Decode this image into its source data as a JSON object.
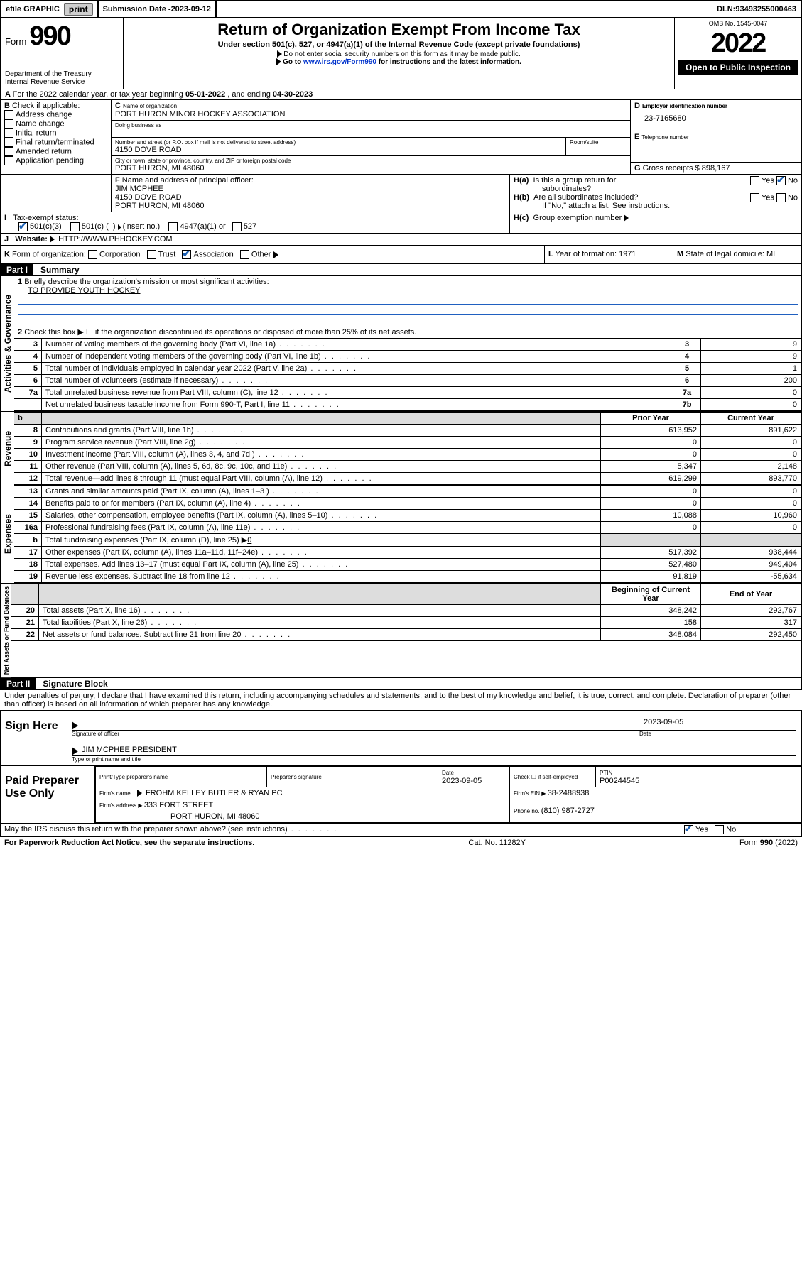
{
  "topbar": {
    "efile": "efile GRAPHIC",
    "print": "print",
    "submission_label": "Submission Date - ",
    "submission_date": "2023-09-12",
    "dln_label": "DLN: ",
    "dln": "93493255000463"
  },
  "header": {
    "form_word": "Form",
    "form_num": "990",
    "dept": "Department of the Treasury",
    "irs": "Internal Revenue Service",
    "title": "Return of Organization Exempt From Income Tax",
    "sub": "Under section 501(c), 527, or 4947(a)(1) of the Internal Revenue Code (except private foundations)",
    "warn1": "Do not enter social security numbers on this form as it may be made public.",
    "warn2_pre": "Go to ",
    "warn2_link": "www.irs.gov/Form990",
    "warn2_post": " for instructions and the latest information.",
    "omb": "OMB No. 1545-0047",
    "year": "2022",
    "open": "Open to Public Inspection"
  },
  "a": {
    "text_pre": "For the 2022 calendar year, or tax year beginning ",
    "beg": "05-01-2022",
    "mid": " , and ending ",
    "end": "04-30-2023"
  },
  "b": {
    "header": "Check if applicable:",
    "opts": [
      "Address change",
      "Name change",
      "Initial return",
      "Final return/terminated",
      "Amended return",
      "Application pending"
    ]
  },
  "c": {
    "label": "Name of organization",
    "name": "PORT HURON MINOR HOCKEY ASSOCIATION",
    "dba_label": "Doing business as",
    "addr_label": "Number and street (or P.O. box if mail is not delivered to street address)",
    "room": "Room/suite",
    "addr": "4150 DOVE ROAD",
    "city_label": "City or town, state or province, country, and ZIP or foreign postal code",
    "city": "PORT HURON, MI  48060"
  },
  "d": {
    "label": "Employer identification number",
    "val": "23-7165680"
  },
  "e": {
    "label": "Telephone number"
  },
  "g": {
    "label": "Gross receipts $ ",
    "val": "898,167"
  },
  "f": {
    "label": "Name and address of principal officer:",
    "name": "JIM MCPHEE",
    "addr": "4150 DOVE ROAD",
    "city": "PORT HURON, MI  48060"
  },
  "h": {
    "a1": "Is this a group return for",
    "a2": "subordinates?",
    "b1": "Are all subordinates included?",
    "b_note": "If \"No,\" attach a list. See instructions.",
    "c": "Group exemption number ",
    "yes": "Yes",
    "no": "No"
  },
  "i": {
    "label": "Tax-exempt status:",
    "o1": "501(c)(3)",
    "o2_a": "501(c) (",
    "o2_b": ") ",
    "o2_c": "(insert no.)",
    "o3": "4947(a)(1) or",
    "o4": "527"
  },
  "j": {
    "label": "Website: ",
    "val": "HTTP://WWW.PHHOCKEY.COM"
  },
  "k": {
    "label": "Form of organization:",
    "o1": "Corporation",
    "o2": "Trust",
    "o3": "Association",
    "o4": "Other "
  },
  "l": {
    "label": "Year of formation: ",
    "val": "1971"
  },
  "m": {
    "label": "State of legal domicile: ",
    "val": "MI"
  },
  "part1": {
    "tag": "Part I",
    "title": "Summary"
  },
  "p1": {
    "l1": "Briefly describe the organization's mission or most significant activities:",
    "l1v": "TO PROVIDE YOUTH HOCKEY",
    "l2": "Check this box ▶ ☐  if the organization discontinued its operations or disposed of more than 25% of its net assets."
  },
  "gov_rows": [
    {
      "n": "3",
      "t": "Number of voting members of the governing body (Part VI, line 1a)",
      "b": "3",
      "v": "9"
    },
    {
      "n": "4",
      "t": "Number of independent voting members of the governing body (Part VI, line 1b)",
      "b": "4",
      "v": "9"
    },
    {
      "n": "5",
      "t": "Total number of individuals employed in calendar year 2022 (Part V, line 2a)",
      "b": "5",
      "v": "1"
    },
    {
      "n": "6",
      "t": "Total number of volunteers (estimate if necessary)",
      "b": "6",
      "v": "200"
    },
    {
      "n": "7a",
      "t": "Total unrelated business revenue from Part VIII, column (C), line 12",
      "b": "7a",
      "v": "0"
    },
    {
      "n": "",
      "t": "Net unrelated business taxable income from Form 990-T, Part I, line 11",
      "b": "7b",
      "v": "0"
    }
  ],
  "col_headers": {
    "b": "b",
    "prior": "Prior Year",
    "current": "Current Year"
  },
  "rev_rows": [
    {
      "n": "8",
      "t": "Contributions and grants (Part VIII, line 1h)",
      "p": "613,952",
      "c": "891,622"
    },
    {
      "n": "9",
      "t": "Program service revenue (Part VIII, line 2g)",
      "p": "0",
      "c": "0"
    },
    {
      "n": "10",
      "t": "Investment income (Part VIII, column (A), lines 3, 4, and 7d )",
      "p": "0",
      "c": "0"
    },
    {
      "n": "11",
      "t": "Other revenue (Part VIII, column (A), lines 5, 6d, 8c, 9c, 10c, and 11e)",
      "p": "5,347",
      "c": "2,148"
    },
    {
      "n": "12",
      "t": "Total revenue—add lines 8 through 11 (must equal Part VIII, column (A), line 12)",
      "p": "619,299",
      "c": "893,770"
    }
  ],
  "exp_rows": [
    {
      "n": "13",
      "t": "Grants and similar amounts paid (Part IX, column (A), lines 1–3 )",
      "p": "0",
      "c": "0"
    },
    {
      "n": "14",
      "t": "Benefits paid to or for members (Part IX, column (A), line 4)",
      "p": "0",
      "c": "0"
    },
    {
      "n": "15",
      "t": "Salaries, other compensation, employee benefits (Part IX, column (A), lines 5–10)",
      "p": "10,088",
      "c": "10,960"
    },
    {
      "n": "16a",
      "t": "Professional fundraising fees (Part IX, column (A), line 11e)",
      "p": "0",
      "c": "0"
    }
  ],
  "exp_b": {
    "n": "b",
    "t": "Total fundraising expenses (Part IX, column (D), line 25) ▶",
    "u": "0"
  },
  "exp_rows2": [
    {
      "n": "17",
      "t": "Other expenses (Part IX, column (A), lines 11a–11d, 11f–24e)",
      "p": "517,392",
      "c": "938,444"
    },
    {
      "n": "18",
      "t": "Total expenses. Add lines 13–17 (must equal Part IX, column (A), line 25)",
      "p": "527,480",
      "c": "949,404"
    },
    {
      "n": "19",
      "t": "Revenue less expenses. Subtract line 18 from line 12",
      "p": "91,819",
      "c": "-55,634"
    }
  ],
  "na_headers": {
    "beg": "Beginning of Current Year",
    "end": "End of Year"
  },
  "na_rows": [
    {
      "n": "20",
      "t": "Total assets (Part X, line 16)",
      "p": "348,242",
      "c": "292,767"
    },
    {
      "n": "21",
      "t": "Total liabilities (Part X, line 26)",
      "p": "158",
      "c": "317"
    },
    {
      "n": "22",
      "t": "Net assets or fund balances. Subtract line 21 from line 20",
      "p": "348,084",
      "c": "292,450"
    }
  ],
  "vert": {
    "gov": "Activities & Governance",
    "rev": "Revenue",
    "exp": "Expenses",
    "na": "Net Assets or Fund Balances"
  },
  "part2": {
    "tag": "Part II",
    "title": "Signature Block"
  },
  "penalties": "Under penalties of perjury, I declare that I have examined this return, including accompanying schedules and statements, and to the best of my knowledge and belief, it is true, correct, and complete. Declaration of preparer (other than officer) is based on all information of which preparer has any knowledge.",
  "sign": {
    "here": "Sign Here",
    "sig_label": "Signature of officer",
    "date_label": "Date",
    "date": "2023-09-05",
    "name": "JIM MCPHEE  PRESIDENT",
    "name_label": "Type or print name and title"
  },
  "paid": {
    "title": "Paid Preparer Use Only",
    "h1": "Print/Type preparer's name",
    "h2": "Preparer's signature",
    "h3_l": "Date",
    "h3_v": "2023-09-05",
    "h4_l": "Check ☐ if self-employed",
    "h5_l": "PTIN",
    "h5_v": "P00244545",
    "firm_l": "Firm's name",
    "firm_v": "FROHM KELLEY BUTLER & RYAN PC",
    "ein_l": "Firm's EIN ▶ ",
    "ein_v": "38-2488938",
    "addr_l": "Firm's address ▶ ",
    "addr_v": "333 FORT STREET",
    "addr2": "PORT HURON, MI  48060",
    "phone_l": "Phone no. ",
    "phone_v": "(810) 987-2727"
  },
  "discuss": {
    "q": "May the IRS discuss this return with the preparer shown above? (see instructions)",
    "yes": "Yes",
    "no": "No"
  },
  "footer": {
    "pra": "For Paperwork Reduction Act Notice, see the separate instructions.",
    "cat": "Cat. No. 11282Y",
    "form": "Form 990 (2022)"
  }
}
